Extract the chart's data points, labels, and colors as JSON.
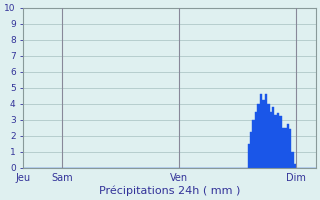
{
  "title": "Précipitations 24h ( mm )",
  "ylabel_values": [
    0,
    1,
    2,
    3,
    4,
    5,
    6,
    7,
    8,
    9,
    10
  ],
  "ylim": [
    0,
    10
  ],
  "background_color": "#dff0f0",
  "grid_color": "#b0c8c8",
  "bar_color": "#1a56e8",
  "bar_edge_color": "#1a56e8",
  "xtick_labels": [
    "Jeu",
    "Sam",
    "Ven",
    "Dim"
  ],
  "xtick_positions": [
    0,
    16,
    64,
    112
  ],
  "bar_values": [
    0,
    0,
    0,
    0,
    0,
    0,
    0,
    0,
    0,
    0,
    0,
    0,
    0,
    0,
    0,
    0,
    0,
    0,
    0,
    0,
    0,
    0,
    0,
    0,
    0,
    0,
    0,
    0,
    0,
    0,
    0,
    0,
    0,
    0,
    0,
    0,
    0,
    0,
    0,
    0,
    0,
    0,
    0,
    0,
    0,
    0,
    0,
    0,
    0,
    0,
    0,
    0,
    0,
    0,
    0,
    0,
    0,
    0,
    0,
    0,
    0,
    0,
    0,
    0,
    0,
    0,
    0,
    0,
    0,
    0,
    0,
    0,
    0,
    0,
    0,
    0,
    0,
    0,
    0,
    0,
    0,
    0,
    0,
    0,
    0,
    0,
    0,
    0,
    0,
    0,
    0,
    0,
    1.5,
    2.2,
    3.0,
    3.5,
    4.0,
    4.6,
    4.2,
    4.6,
    4.0,
    3.5,
    3.8,
    3.3,
    3.4,
    3.2,
    2.5,
    2.5,
    2.7,
    2.4,
    1.0,
    0.2,
    0,
    0,
    0,
    0,
    0,
    0,
    0,
    0
  ],
  "vline_positions": [
    16,
    64,
    112
  ],
  "axis_label_color": "#333399",
  "tick_color": "#333399",
  "title_color": "#333399"
}
